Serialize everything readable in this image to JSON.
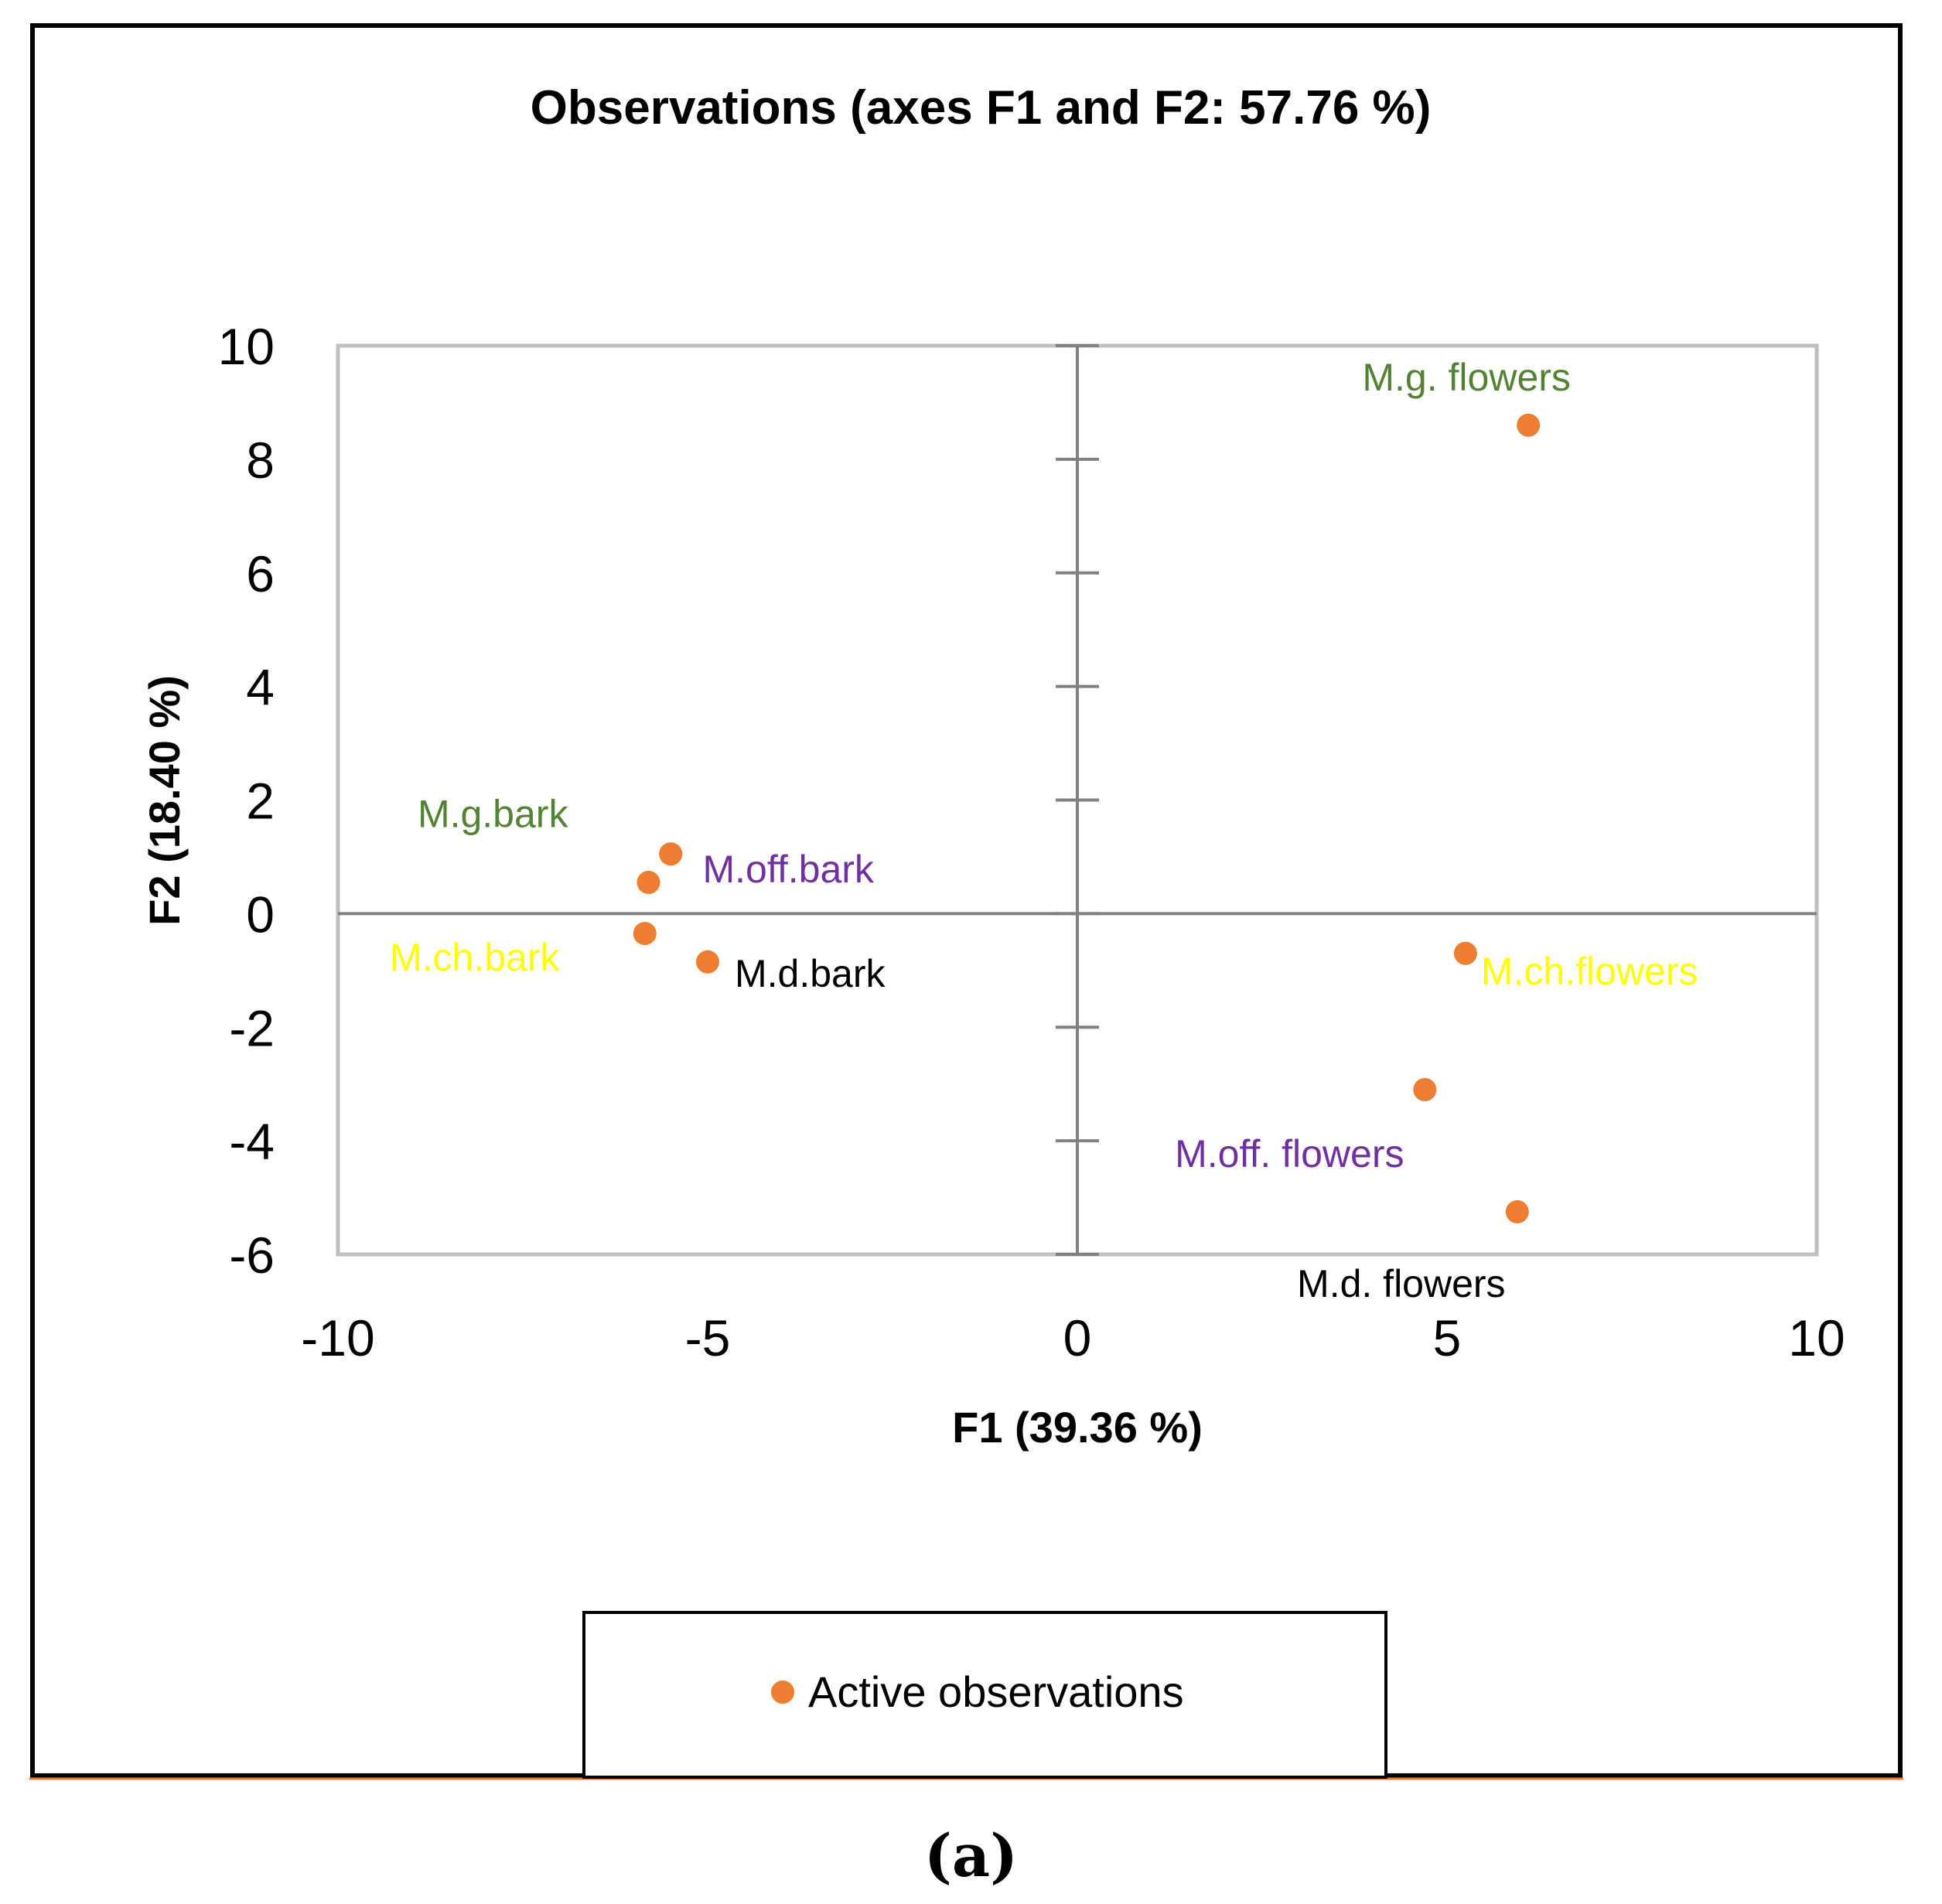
{
  "chart_data": {
    "type": "scatter",
    "title": "Observations (axes F1 and F2: 57.76 %)",
    "xlabel": "F1 (39.36 %)",
    "ylabel": "F2 (18.40 %)",
    "xlim": [
      -10,
      10
    ],
    "ylim": [
      -6,
      10
    ],
    "xticks": [
      -10,
      -5,
      0,
      5,
      10
    ],
    "yticks": [
      10,
      8,
      6,
      4,
      2,
      0,
      -2,
      -4,
      -6
    ],
    "xtick_labels": [
      "-10",
      "-5",
      "0",
      "5",
      "10"
    ],
    "ytick_labels": [
      "10",
      "8",
      "6",
      "4",
      "2",
      "0",
      "-2",
      "-4",
      "-6"
    ],
    "legend": {
      "position": "bottom",
      "label": "Active observations"
    },
    "series": [
      {
        "name": "Active observations",
        "color": "#ED7D31",
        "points": [
          {
            "x": 6.1,
            "y": 8.6,
            "label": "M.g. flowers",
            "label_color": "#548235",
            "label_side": "above-left"
          },
          {
            "x": -5.5,
            "y": 1.05,
            "label": "M.g.bark",
            "label_color": "#548235",
            "label_side": "upper-left"
          },
          {
            "x": -5.8,
            "y": 0.55,
            "label": "M.off.bark",
            "label_color": "#7030A0",
            "label_side": "right"
          },
          {
            "x": -5.85,
            "y": -0.35,
            "label": "M.ch.bark",
            "label_color": "#FFFF00",
            "label_side": "left"
          },
          {
            "x": -5.0,
            "y": -0.85,
            "label": "M.d.bark",
            "label_color": "#000000",
            "label_side": "right"
          },
          {
            "x": 5.25,
            "y": -0.7,
            "label": "M.ch.flowers",
            "label_color": "#FFFF00",
            "label_side": "below-right"
          },
          {
            "x": 4.7,
            "y": -3.1,
            "label": "M.off. flowers",
            "label_color": "#7030A0",
            "label_side": "below-left"
          },
          {
            "x": 5.95,
            "y": -5.25,
            "label": "M.d. flowers",
            "label_color": "#000000",
            "label_side": "below"
          }
        ]
      }
    ],
    "grid": false,
    "axis_lines_at_zero": true,
    "caption": "(a)"
  }
}
